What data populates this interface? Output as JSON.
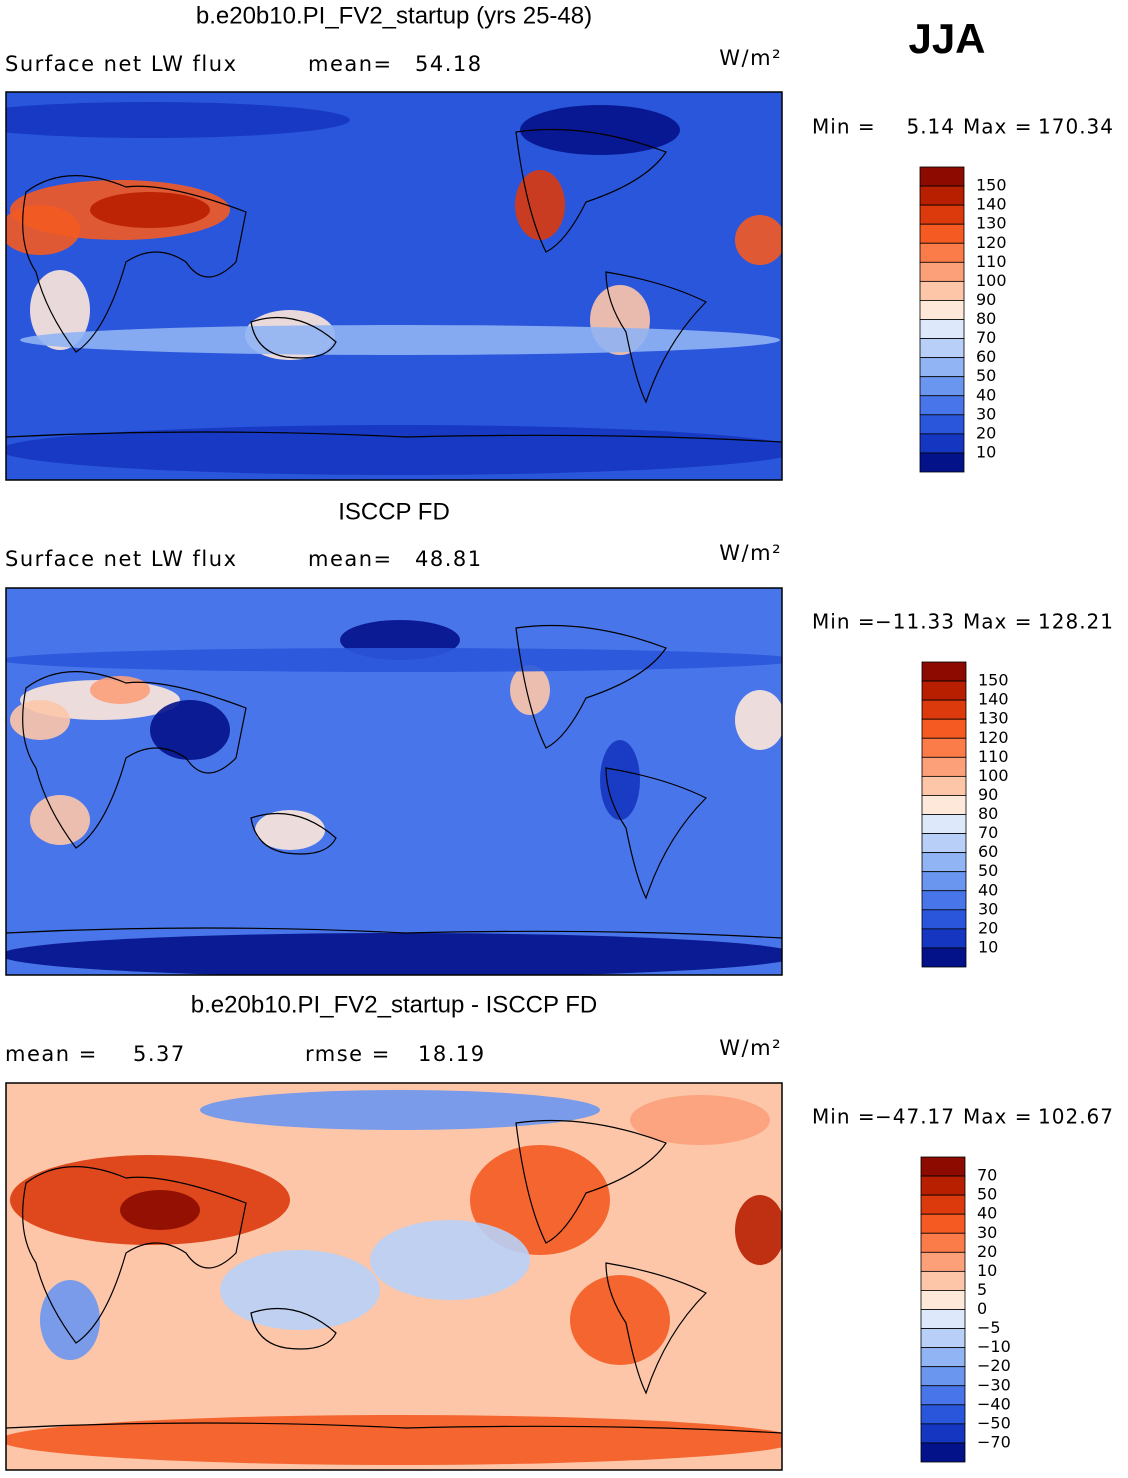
{
  "season": "JJA",
  "panels": [
    {
      "title": "b.e20b10.PI_FV2_startup (yrs 25-48)",
      "header": [
        "Surface net LW flux",
        "mean=",
        "54.18"
      ],
      "units": "W/m²",
      "min_label": "Min =",
      "min_value": "5.14",
      "max_label": "Max =",
      "max_value": "170.34",
      "colorbar": [
        "150",
        "140",
        "130",
        "120",
        "110",
        "100",
        "90",
        "80",
        "70",
        "60",
        "50",
        "40",
        "30",
        "20",
        "10"
      ]
    },
    {
      "title": "ISCCP FD",
      "header": [
        "Surface net LW flux",
        "mean=",
        "48.81"
      ],
      "units": "W/m²",
      "min_label": "Min =",
      "min_value": "−11.33",
      "max_label": "Max =",
      "max_value": "128.21",
      "colorbar": [
        "150",
        "140",
        "130",
        "120",
        "110",
        "100",
        "90",
        "80",
        "70",
        "60",
        "50",
        "40",
        "30",
        "20",
        "10"
      ]
    },
    {
      "title": "b.e20b10.PI_FV2_startup - ISCCP FD",
      "header": [
        "mean =",
        "5.37",
        "rmse =",
        "18.19"
      ],
      "units": "W/m²",
      "min_label": "Min =",
      "min_value": "−47.17",
      "max_label": "Max =",
      "max_value": "102.67",
      "colorbar": [
        "70",
        "50",
        "40",
        "30",
        "20",
        "10",
        "5",
        "0",
        "−5",
        "−10",
        "−20",
        "−30",
        "−40",
        "−50",
        "−70"
      ]
    }
  ],
  "colors": [
    "#8c0a00",
    "#b81e00",
    "#dc3a0c",
    "#f45a22",
    "#fb7c48",
    "#fca07a",
    "#fdc6a8",
    "#fee8da",
    "#dde9fb",
    "#b8d0f8",
    "#90b4f4",
    "#6a96f0",
    "#4876ea",
    "#2a56dc",
    "#1536c0",
    "#04128a"
  ]
}
